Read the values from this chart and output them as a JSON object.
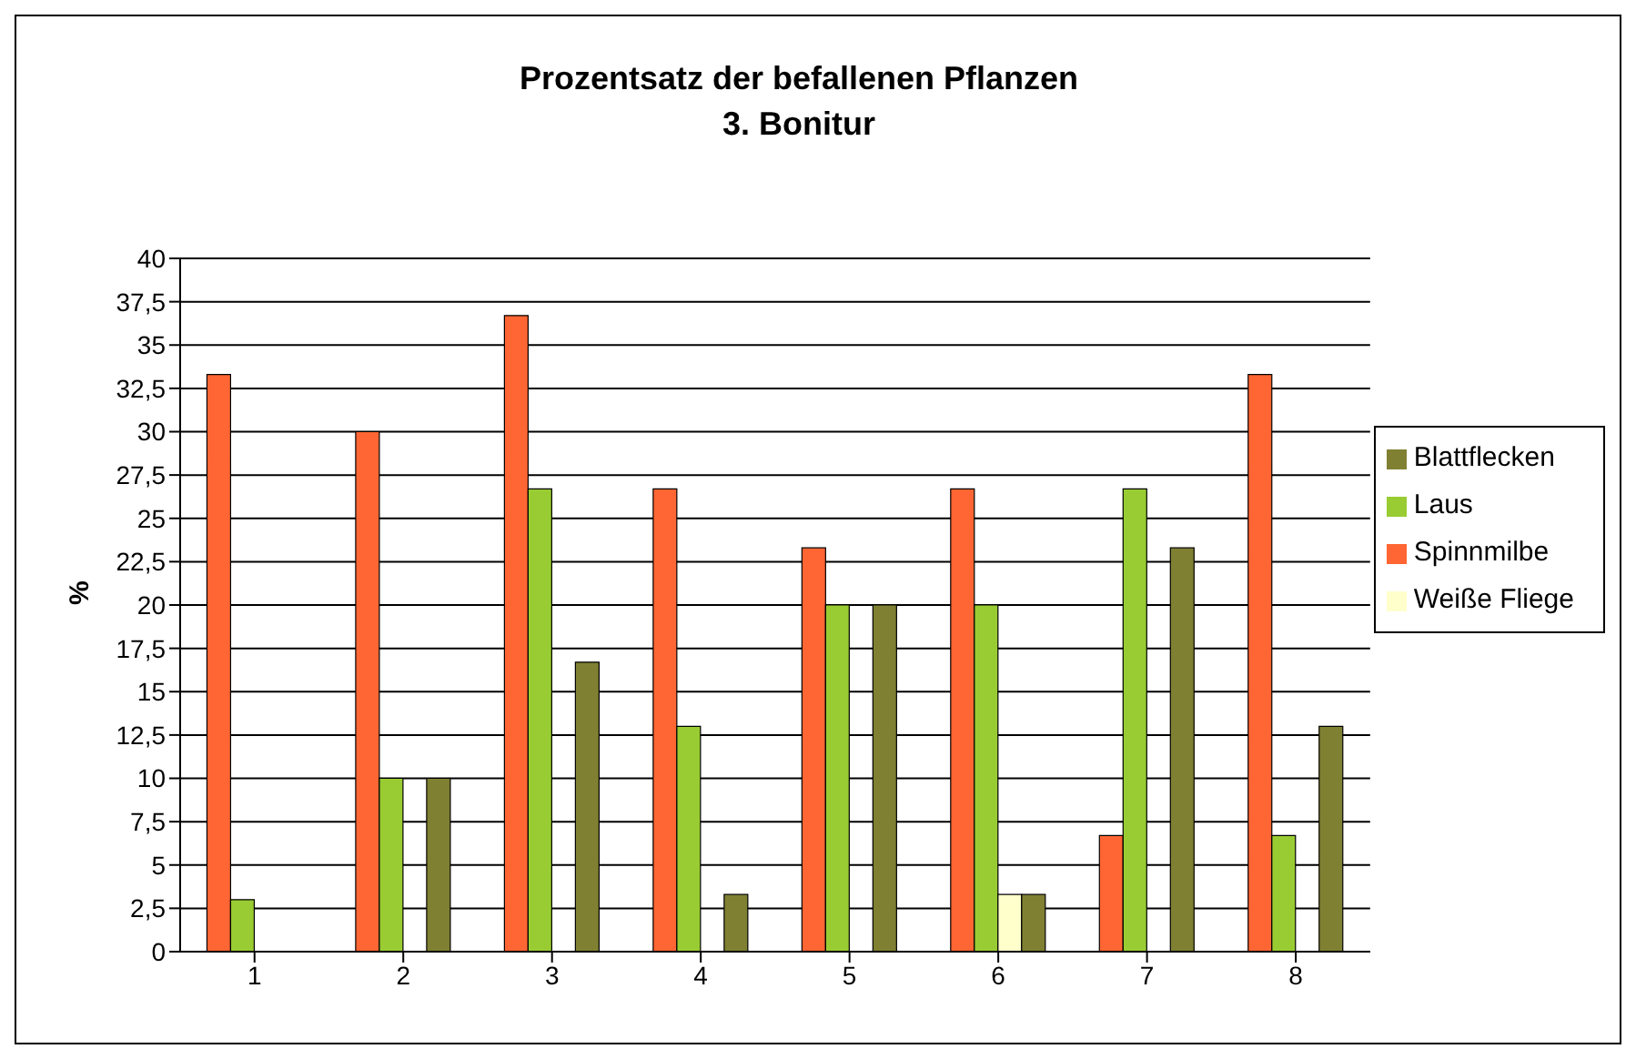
{
  "chart_data": {
    "type": "bar",
    "title": "Prozentsatz der befallenen Pflanzen\n3. Bonitur",
    "ylabel": "%",
    "categories": [
      "1",
      "2",
      "3",
      "4",
      "5",
      "6",
      "7",
      "8"
    ],
    "series": [
      {
        "name": "Spinnmilbe",
        "color": "#ff6633",
        "values": [
          33.3,
          30,
          36.7,
          26.7,
          23.3,
          26.7,
          6.7,
          33.3
        ]
      },
      {
        "name": "Laus",
        "color": "#99cc33",
        "values": [
          3,
          10,
          26.7,
          13,
          20,
          20,
          26.7,
          6.7
        ]
      },
      {
        "name": "Weiße Fliege",
        "color": "#ffffcc",
        "values": [
          0,
          0,
          0,
          0,
          0,
          3.3,
          0,
          0
        ]
      },
      {
        "name": "Blattflecken",
        "color": "#808033",
        "values": [
          0,
          10,
          16.7,
          3.3,
          20,
          3.3,
          23.3,
          13
        ]
      }
    ],
    "ylim": [
      0,
      40
    ],
    "yticks": [
      0,
      {
        "value": 2.5,
        "label": "2,5"
      },
      5,
      {
        "value": 7.5,
        "label": "7,5"
      },
      10,
      {
        "value": 12.5,
        "label": "12,5"
      },
      15,
      {
        "value": 17.5,
        "label": "17,5"
      },
      20,
      {
        "value": 22.5,
        "label": "22,5"
      },
      25,
      {
        "value": 27.5,
        "label": "27,5"
      },
      30,
      {
        "value": 32.5,
        "label": "32,5"
      },
      35,
      {
        "value": 37.5,
        "label": "37,5"
      },
      40
    ],
    "grid": "y",
    "legend": "right"
  }
}
